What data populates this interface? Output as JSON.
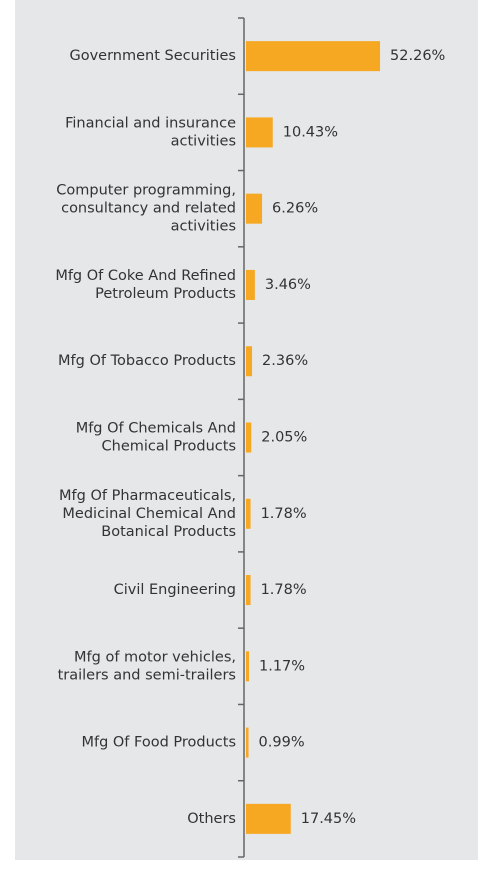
{
  "chart_data": {
    "type": "bar",
    "orientation": "horizontal",
    "categories": [
      "Government Securities",
      "Financial and insurance\nactivities",
      "Computer programming,\nconsultancy and related\nactivities",
      "Mfg Of Coke And Refined\nPetroleum Products",
      "Mfg Of Tobacco Products",
      "Mfg Of Chemicals And\nChemical Products",
      "Mfg Of Pharmaceuticals,\nMedicinal Chemical And\nBotanical Products",
      "Civil Engineering",
      "Mfg of motor vehicles,\ntrailers and semi-trailers",
      "Mfg Of Food Products",
      "Others"
    ],
    "values": [
      52.26,
      10.43,
      6.26,
      3.46,
      2.36,
      2.05,
      1.78,
      1.78,
      1.17,
      0.99,
      17.45
    ],
    "value_labels": [
      "52.26%",
      "10.43%",
      "6.26%",
      "3.46%",
      "2.36%",
      "2.05%",
      "1.78%",
      "1.78%",
      "1.17%",
      "0.99%",
      "17.45%"
    ],
    "color": "#f7a823"
  }
}
